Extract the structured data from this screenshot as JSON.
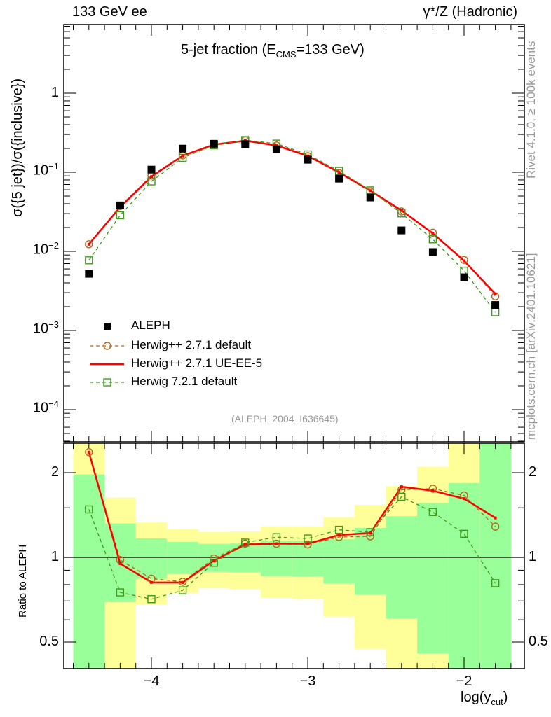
{
  "header": {
    "left": "133 GeV ee",
    "right": "γ*/Z (Hadronic)"
  },
  "side": {
    "rivet": "Rivet 4.1.0, ≥ 100k events",
    "mcplots": "mcplots.cern.ch [arXiv:2401.10621]"
  },
  "chart_data": [
    {
      "type": "scatter",
      "title": {
        "main": "5-jet fraction (E",
        "sub": "CMS",
        "rest": "=133 GeV)"
      },
      "ylabel": "σ({5 jet})/σ({inclusive})",
      "xlabel": {
        "main": "log(y",
        "sub": "cut",
        "rest": ")"
      },
      "yscale": "log",
      "ylim": [
        4e-05,
        7.4
      ],
      "xlim": [
        -4.56,
        -1.61
      ],
      "yticks": [
        0.0001,
        0.001,
        0.01,
        0.1,
        1
      ],
      "yticklabels": [
        {
          "b": "10",
          "e": "−4"
        },
        {
          "b": "10",
          "e": "−3"
        },
        {
          "b": "10",
          "e": "−2"
        },
        {
          "b": "10",
          "e": "−1"
        },
        {
          "b": "1",
          "e": ""
        }
      ],
      "annotation": "(ALEPH_2004_I636645)",
      "legend_position": "bottom-left",
      "x": [
        -4.4,
        -4.2,
        -4.0,
        -3.8,
        -3.6,
        -3.4,
        -3.2,
        -3.0,
        -2.8,
        -2.6,
        -2.4,
        -2.2,
        -2.0,
        -1.8
      ],
      "series": [
        {
          "name": "ALEPH",
          "style": "data",
          "color": "#000000",
          "values": [
            0.0052,
            0.0381,
            0.108,
            0.199,
            0.229,
            0.226,
            0.195,
            0.144,
            0.083,
            0.048,
            0.0184,
            0.0098,
            0.0047,
            0.0021
          ]
        },
        {
          "name": "Herwig++ 2.7.1 default",
          "style": "circle-dashed",
          "color": "#b8651b",
          "values": [
            0.0123,
            0.0373,
            0.0907,
            0.163,
            0.227,
            0.253,
            0.218,
            0.16,
            0.098,
            0.057,
            0.032,
            0.0172,
            0.0078,
            0.0027
          ]
        },
        {
          "name": "Herwig++ 2.7.1 UE-EE-5",
          "style": "line",
          "color": "#ff0000",
          "values": [
            0.0123,
            0.0362,
            0.088,
            0.162,
            0.223,
            0.251,
            0.218,
            0.161,
            0.0996,
            0.0586,
            0.0328,
            0.0169,
            0.0076,
            0.0029
          ]
        },
        {
          "name": "Herwig 7.2.1 default",
          "style": "square-dashed",
          "color": "#3f9a1c",
          "values": [
            0.0077,
            0.0286,
            0.0767,
            0.152,
            0.219,
            0.255,
            0.23,
            0.168,
            0.104,
            0.059,
            0.0302,
            0.0142,
            0.0057,
            0.0017
          ]
        }
      ]
    },
    {
      "type": "line",
      "ylabel": "Ratio to ALEPH",
      "yscale": "log",
      "ylim": [
        0.4,
        2.54
      ],
      "yticks": [
        0.5,
        1,
        2
      ],
      "yticklabels": [
        "0.5",
        "1",
        "2"
      ],
      "xticks": [
        -4,
        -3,
        -2
      ],
      "xticklabels": [
        "−4",
        "−3",
        "−2"
      ],
      "bin_width": 0.2,
      "band_colors": {
        "total": "#ffff99",
        "stat": "#99ff99"
      },
      "band_total": [
        [
          0.3,
          2.6
        ],
        [
          0.3,
          1.63
        ],
        [
          0.68,
          1.33
        ],
        [
          0.748,
          1.26
        ],
        [
          0.777,
          1.23
        ],
        [
          0.773,
          1.236
        ],
        [
          0.717,
          1.289
        ],
        [
          0.713,
          1.289
        ],
        [
          0.616,
          1.39
        ],
        [
          0.473,
          1.537
        ],
        [
          0.3,
          1.79
        ],
        [
          0.3,
          2.1
        ],
        [
          0.3,
          2.6
        ],
        [
          0.3,
          2.6
        ]
      ],
      "band_stat": [
        [
          0.3,
          1.97
        ],
        [
          0.693,
          1.32
        ],
        [
          0.839,
          1.167
        ],
        [
          0.872,
          1.134
        ],
        [
          0.888,
          1.117
        ],
        [
          0.885,
          1.12
        ],
        [
          0.858,
          1.143
        ],
        [
          0.855,
          1.143
        ],
        [
          0.807,
          1.16
        ],
        [
          0.737,
          1.272
        ],
        [
          0.606,
          1.4
        ],
        [
          0.455,
          1.56
        ],
        [
          0.3,
          1.835
        ],
        [
          0.3,
          2.6
        ]
      ]
    }
  ]
}
